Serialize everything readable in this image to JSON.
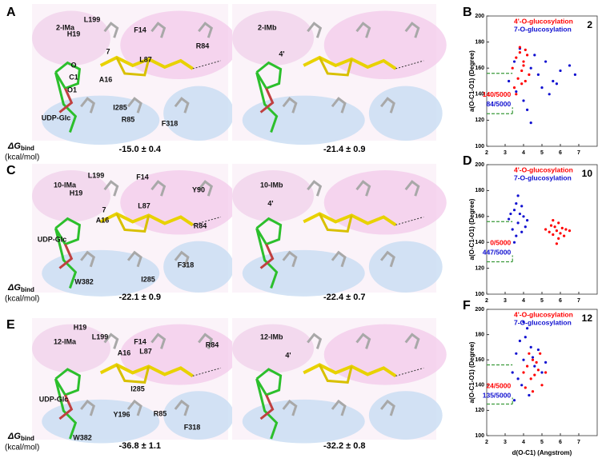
{
  "panels": [
    {
      "letter": "A",
      "images": [
        {
          "title": "2-IMa",
          "labels": [
            "L199",
            "F14",
            "H19",
            "L87",
            "R84",
            "7",
            "O",
            "A16",
            "C1",
            "O1",
            "I285",
            "R85",
            "F318",
            "UDP-Glc"
          ],
          "delta_g": "-15.0 ± 0.4"
        },
        {
          "title": "2-IMb",
          "labels": [
            "4'"
          ],
          "delta_g": "-21.4 ± 0.9"
        }
      ]
    },
    {
      "letter": "C",
      "images": [
        {
          "title": "10-IMa",
          "labels": [
            "H19",
            "L199",
            "F14",
            "Y90",
            "L87",
            "7",
            "A16",
            "R84",
            "UDP-Glc",
            "F318",
            "W382",
            "I285"
          ],
          "delta_g": "-22.1 ± 0.9"
        },
        {
          "title": "10-IMb",
          "labels": [
            "4'"
          ],
          "delta_g": "-22.4 ± 0.7"
        }
      ]
    },
    {
      "letter": "E",
      "images": [
        {
          "title": "12-IMa",
          "labels": [
            "H19",
            "L199",
            "F14",
            "A16",
            "L87",
            "R84",
            "UDP-Glc",
            "I285",
            "Y196",
            "R85",
            "F318",
            "W382"
          ],
          "delta_g": "-36.8 ± 1.1"
        },
        {
          "title": "12-IMb",
          "labels": [
            "4'"
          ],
          "delta_g": "-32.2 ± 0.8"
        }
      ]
    }
  ],
  "delta_g_label": {
    "symbol": "ΔG",
    "subscript": "bind",
    "unit": "(kcal/mol)"
  },
  "chart_data": [
    {
      "type": "scatter",
      "panel": "B",
      "number_label": "2",
      "ylabel": "a(O-C1-O1) (Degree)",
      "xlim": [
        2,
        8
      ],
      "xticks": [
        2,
        3,
        4,
        5,
        6,
        7
      ],
      "ylim": [
        100,
        200
      ],
      "yticks": [
        100,
        120,
        140,
        160,
        180,
        200
      ],
      "reference_box": {
        "xlim": [
          2,
          3.4
        ],
        "ylim": [
          125,
          156
        ]
      },
      "reference_color": "#3a9a3a",
      "series": [
        {
          "name": "7-O-glucosylation",
          "color": "#1010d0",
          "x": [
            3.2,
            3.6,
            4.0,
            4.4,
            4.8,
            5.2,
            5.6,
            6.0,
            6.5,
            4.2,
            4.6,
            5.0,
            3.8,
            5.4,
            4.4,
            6.8,
            3.5,
            5.8
          ],
          "y": [
            150,
            142,
            135,
            160,
            155,
            165,
            150,
            158,
            162,
            128,
            170,
            145,
            175,
            140,
            118,
            155,
            165,
            148
          ]
        },
        {
          "name": "4'-O-glucosylation",
          "color": "#ff0000",
          "x": [
            3.4,
            3.6,
            3.7,
            3.8,
            3.9,
            4.0,
            4.1,
            4.2,
            3.5,
            3.8,
            4.0,
            4.3,
            3.6,
            3.9,
            4.1
          ],
          "y": [
            160,
            168,
            152,
            172,
            158,
            165,
            150,
            170,
            145,
            176,
            162,
            155,
            140,
            148,
            174
          ]
        }
      ],
      "annotations": [
        {
          "text": "140/5000",
          "color": "#ff0000"
        },
        {
          "text": "84/5000",
          "color": "#1010d0"
        }
      ]
    },
    {
      "type": "scatter",
      "panel": "D",
      "number_label": "10",
      "ylabel": "a(O-C1-O1) (Degree)",
      "xlim": [
        2,
        8
      ],
      "xticks": [
        2,
        3,
        4,
        5,
        6,
        7
      ],
      "ylim": [
        100,
        200
      ],
      "yticks": [
        100,
        120,
        140,
        160,
        180,
        200
      ],
      "reference_box": {
        "xlim": [
          2,
          3.4
        ],
        "ylim": [
          125,
          156
        ]
      },
      "reference_color": "#3a9a3a",
      "series": [
        {
          "name": "7-O-glucosylation",
          "color": "#1010d0",
          "x": [
            3.2,
            3.4,
            3.5,
            3.6,
            3.7,
            3.8,
            3.9,
            4.0,
            4.2,
            3.5,
            3.7,
            3.9,
            3.3,
            4.1,
            3.6
          ],
          "y": [
            158,
            150,
            165,
            170,
            155,
            162,
            148,
            160,
            157,
            140,
            176,
            168,
            162,
            152,
            145
          ]
        },
        {
          "name": "4'-O-glucosylation",
          "color": "#ff0000",
          "x": [
            5.2,
            5.4,
            5.5,
            5.6,
            5.7,
            5.8,
            5.9,
            6.0,
            6.1,
            6.3,
            6.5,
            5.6,
            5.9,
            6.2,
            5.8
          ],
          "y": [
            150,
            148,
            153,
            146,
            152,
            149,
            155,
            147,
            151,
            150,
            149,
            157,
            143,
            145,
            139
          ]
        }
      ],
      "annotations": [
        {
          "text": "0/5000",
          "color": "#ff0000"
        },
        {
          "text": "447/5000",
          "color": "#1010d0"
        }
      ]
    },
    {
      "type": "scatter",
      "panel": "F",
      "number_label": "12",
      "ylabel": "a(O-C1-O1) (Degree)",
      "xlabel": "d(O-C1) (Angstrom)",
      "xlim": [
        2,
        8
      ],
      "xticks": [
        2,
        3,
        4,
        5,
        6,
        7
      ],
      "ylim": [
        100,
        200
      ],
      "yticks": [
        100,
        120,
        140,
        160,
        180,
        200
      ],
      "reference_box": {
        "xlim": [
          2,
          3.4
        ],
        "ylim": [
          125,
          156
        ]
      },
      "reference_color": "#3a9a3a",
      "series": [
        {
          "name": "7-O-glucosylation",
          "color": "#1010d0",
          "x": [
            3.4,
            3.6,
            3.8,
            4.0,
            4.2,
            4.4,
            4.6,
            4.8,
            5.0,
            3.9,
            4.3,
            4.1,
            3.7,
            4.5,
            5.2,
            3.5,
            4.0
          ],
          "y": [
            150,
            165,
            175,
            160,
            185,
            170,
            155,
            168,
            150,
            140,
            132,
            178,
            145,
            162,
            158,
            128,
            190
          ]
        },
        {
          "name": "4'-O-glucosylation",
          "color": "#ff0000",
          "x": [
            4.0,
            4.2,
            4.4,
            4.5,
            4.6,
            4.8,
            5.0,
            4.3,
            4.7,
            4.1,
            5.2,
            4.9,
            4.5
          ],
          "y": [
            150,
            155,
            145,
            160,
            148,
            152,
            140,
            165,
            158,
            138,
            150,
            165,
            135
          ]
        }
      ],
      "annotations": [
        {
          "text": "24/5000",
          "color": "#ff0000"
        },
        {
          "text": "135/5000",
          "color": "#1010d0"
        }
      ]
    }
  ]
}
